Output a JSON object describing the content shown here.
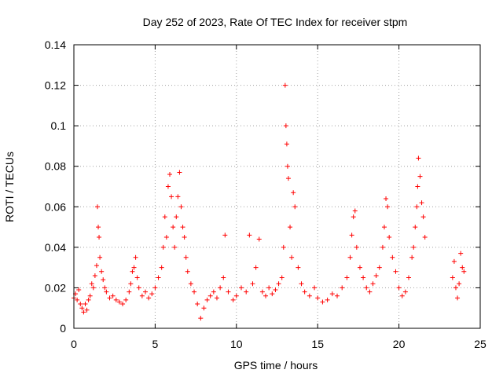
{
  "chart_data": {
    "type": "scatter",
    "title": "Day 252 of 2023, Rate Of TEC Index for receiver stpm",
    "xlabel": "GPS time / hours",
    "ylabel": "ROTI / TECUs",
    "xlim": [
      0,
      25
    ],
    "ylim": [
      0,
      0.14
    ],
    "xticks": [
      0,
      5,
      10,
      15,
      20,
      25
    ],
    "yticks": [
      0,
      0.02,
      0.04,
      0.06,
      0.08,
      0.1,
      0.12,
      0.14
    ],
    "xtick_labels": [
      "0",
      "5",
      "10",
      "15",
      "20",
      "25"
    ],
    "ytick_labels": [
      "0",
      "0.02",
      "0.04",
      "0.06",
      "0.08",
      "0.1",
      "0.12",
      "0.14"
    ],
    "grid": true,
    "marker": "+",
    "series": [
      {
        "color": "#ff0000",
        "points": [
          [
            0.0,
            0.015
          ],
          [
            0.1,
            0.017
          ],
          [
            0.2,
            0.014
          ],
          [
            0.3,
            0.019
          ],
          [
            0.4,
            0.012
          ],
          [
            0.5,
            0.01
          ],
          [
            0.6,
            0.008
          ],
          [
            0.7,
            0.012
          ],
          [
            0.8,
            0.009
          ],
          [
            0.9,
            0.014
          ],
          [
            1.0,
            0.016
          ],
          [
            1.1,
            0.022
          ],
          [
            1.2,
            0.02
          ],
          [
            1.3,
            0.026
          ],
          [
            1.4,
            0.031
          ],
          [
            1.45,
            0.06
          ],
          [
            1.5,
            0.05
          ],
          [
            1.55,
            0.045
          ],
          [
            1.6,
            0.035
          ],
          [
            1.7,
            0.028
          ],
          [
            1.8,
            0.024
          ],
          [
            1.9,
            0.02
          ],
          [
            2.0,
            0.018
          ],
          [
            2.2,
            0.015
          ],
          [
            2.4,
            0.016
          ],
          [
            2.6,
            0.014
          ],
          [
            2.8,
            0.013
          ],
          [
            3.0,
            0.012
          ],
          [
            3.2,
            0.014
          ],
          [
            3.4,
            0.018
          ],
          [
            3.5,
            0.022
          ],
          [
            3.6,
            0.028
          ],
          [
            3.7,
            0.03
          ],
          [
            3.8,
            0.035
          ],
          [
            3.9,
            0.025
          ],
          [
            4.0,
            0.02
          ],
          [
            4.2,
            0.016
          ],
          [
            4.4,
            0.018
          ],
          [
            4.6,
            0.015
          ],
          [
            4.8,
            0.017
          ],
          [
            5.0,
            0.02
          ],
          [
            5.2,
            0.025
          ],
          [
            5.4,
            0.03
          ],
          [
            5.5,
            0.04
          ],
          [
            5.6,
            0.055
          ],
          [
            5.7,
            0.045
          ],
          [
            5.8,
            0.07
          ],
          [
            5.9,
            0.076
          ],
          [
            6.0,
            0.065
          ],
          [
            6.1,
            0.05
          ],
          [
            6.2,
            0.04
          ],
          [
            6.3,
            0.055
          ],
          [
            6.4,
            0.065
          ],
          [
            6.5,
            0.077
          ],
          [
            6.6,
            0.06
          ],
          [
            6.7,
            0.05
          ],
          [
            6.8,
            0.045
          ],
          [
            6.9,
            0.035
          ],
          [
            7.0,
            0.028
          ],
          [
            7.2,
            0.022
          ],
          [
            7.4,
            0.018
          ],
          [
            7.6,
            0.012
          ],
          [
            7.8,
            0.005
          ],
          [
            8.0,
            0.01
          ],
          [
            8.2,
            0.014
          ],
          [
            8.4,
            0.016
          ],
          [
            8.6,
            0.018
          ],
          [
            8.8,
            0.015
          ],
          [
            9.0,
            0.02
          ],
          [
            9.2,
            0.025
          ],
          [
            9.3,
            0.046
          ],
          [
            9.5,
            0.018
          ],
          [
            9.8,
            0.014
          ],
          [
            10.0,
            0.016
          ],
          [
            10.3,
            0.02
          ],
          [
            10.6,
            0.018
          ],
          [
            10.8,
            0.046
          ],
          [
            11.0,
            0.022
          ],
          [
            11.2,
            0.03
          ],
          [
            11.4,
            0.044
          ],
          [
            11.6,
            0.018
          ],
          [
            11.8,
            0.016
          ],
          [
            12.0,
            0.02
          ],
          [
            12.2,
            0.017
          ],
          [
            12.4,
            0.019
          ],
          [
            12.6,
            0.022
          ],
          [
            12.8,
            0.025
          ],
          [
            12.9,
            0.04
          ],
          [
            13.0,
            0.12
          ],
          [
            13.05,
            0.1
          ],
          [
            13.1,
            0.091
          ],
          [
            13.15,
            0.08
          ],
          [
            13.2,
            0.074
          ],
          [
            13.3,
            0.05
          ],
          [
            13.4,
            0.035
          ],
          [
            13.5,
            0.067
          ],
          [
            13.6,
            0.06
          ],
          [
            13.8,
            0.03
          ],
          [
            14.0,
            0.022
          ],
          [
            14.2,
            0.018
          ],
          [
            14.5,
            0.016
          ],
          [
            14.8,
            0.02
          ],
          [
            15.0,
            0.015
          ],
          [
            15.3,
            0.013
          ],
          [
            15.6,
            0.014
          ],
          [
            15.9,
            0.017
          ],
          [
            16.2,
            0.016
          ],
          [
            16.5,
            0.02
          ],
          [
            16.8,
            0.025
          ],
          [
            17.0,
            0.035
          ],
          [
            17.1,
            0.046
          ],
          [
            17.2,
            0.055
          ],
          [
            17.3,
            0.058
          ],
          [
            17.4,
            0.04
          ],
          [
            17.6,
            0.03
          ],
          [
            17.8,
            0.025
          ],
          [
            18.0,
            0.02
          ],
          [
            18.2,
            0.018
          ],
          [
            18.4,
            0.022
          ],
          [
            18.6,
            0.026
          ],
          [
            18.8,
            0.03
          ],
          [
            19.0,
            0.04
          ],
          [
            19.1,
            0.05
          ],
          [
            19.2,
            0.064
          ],
          [
            19.3,
            0.06
          ],
          [
            19.4,
            0.045
          ],
          [
            19.6,
            0.035
          ],
          [
            19.8,
            0.028
          ],
          [
            20.0,
            0.02
          ],
          [
            20.2,
            0.016
          ],
          [
            20.4,
            0.018
          ],
          [
            20.6,
            0.025
          ],
          [
            20.8,
            0.035
          ],
          [
            20.9,
            0.04
          ],
          [
            21.0,
            0.05
          ],
          [
            21.1,
            0.06
          ],
          [
            21.15,
            0.07
          ],
          [
            21.2,
            0.084
          ],
          [
            21.3,
            0.075
          ],
          [
            21.4,
            0.062
          ],
          [
            21.5,
            0.055
          ],
          [
            21.6,
            0.045
          ],
          [
            23.3,
            0.025
          ],
          [
            23.4,
            0.033
          ],
          [
            23.5,
            0.02
          ],
          [
            23.6,
            0.015
          ],
          [
            23.7,
            0.022
          ],
          [
            23.8,
            0.037
          ],
          [
            23.9,
            0.03
          ],
          [
            24.0,
            0.028
          ]
        ]
      }
    ]
  }
}
